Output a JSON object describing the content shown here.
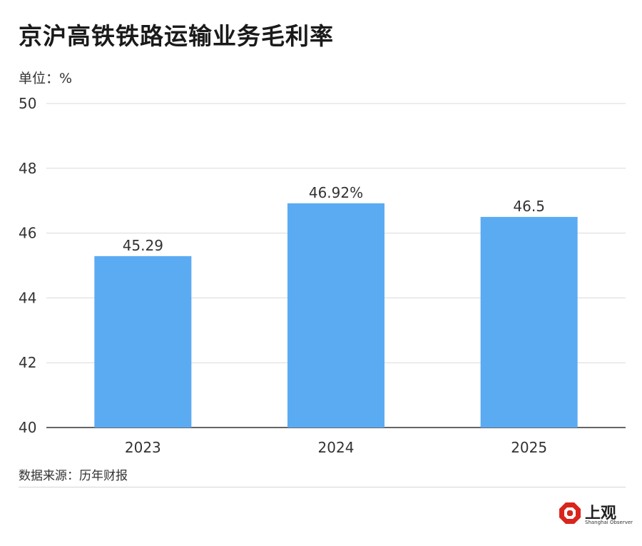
{
  "title": "京沪高铁铁路运输业务毛利率",
  "unit_label": "单位：%",
  "source": "数据来源：历年财报",
  "logo": {
    "cn": "上观",
    "en": "Shanghai Observer",
    "icon": "shanghai-observer-logo",
    "color": "#d9251c"
  },
  "chart_data": {
    "type": "bar",
    "title": "京沪高铁铁路运输业务毛利率",
    "ylabel": "单位：%",
    "xlabel": "",
    "categories": [
      "2023",
      "2024",
      "2025"
    ],
    "values": [
      45.29,
      46.92,
      46.5
    ],
    "data_labels": [
      "45.29",
      "46.92%",
      "46.5"
    ],
    "ylim": [
      40,
      50
    ],
    "yticks": [
      40,
      42,
      44,
      46,
      48,
      50
    ],
    "grid": true,
    "bar_color": "#5aabf2"
  }
}
